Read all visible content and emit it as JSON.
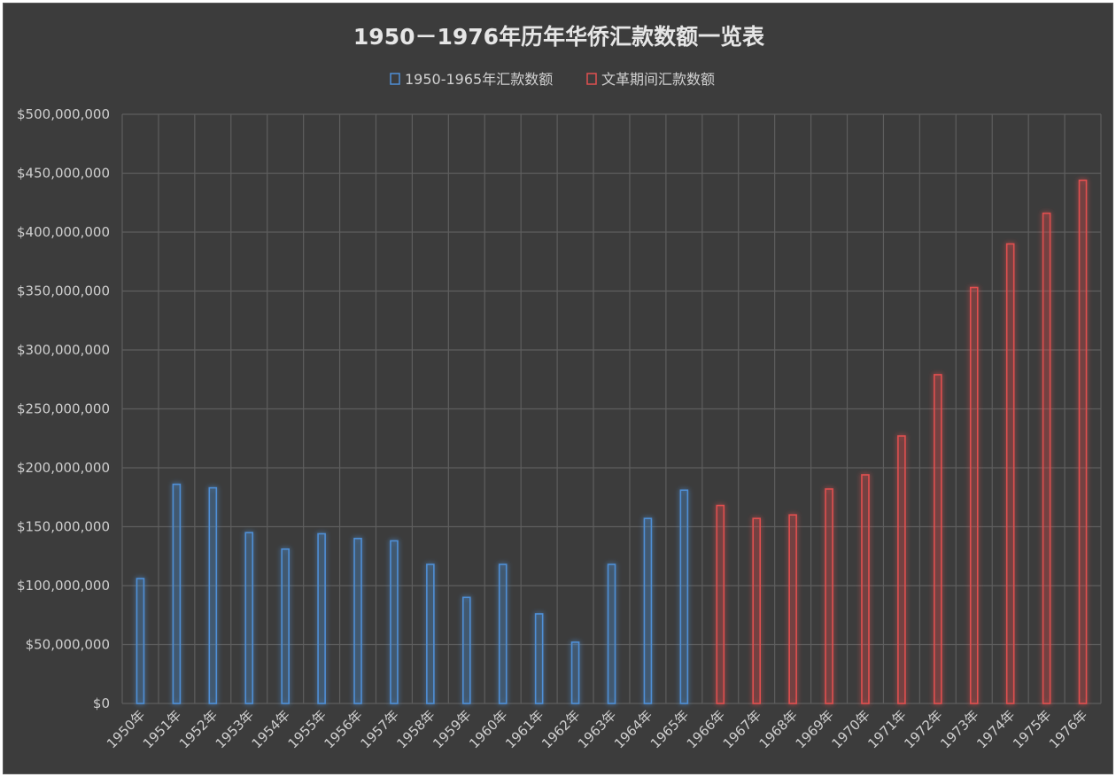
{
  "chart_data": {
    "type": "bar",
    "title": "1950－1976年历年华侨汇款数额一览表",
    "xlabel": "",
    "ylabel": "",
    "ylim": [
      0,
      500000000
    ],
    "yticks": [
      "$0",
      "$50,000,000",
      "$100,000,000",
      "$150,000,000",
      "$200,000,000",
      "$250,000,000",
      "$300,000,000",
      "$350,000,000",
      "$400,000,000",
      "$450,000,000",
      "$500,000,000"
    ],
    "grid": true,
    "legend_position": "top",
    "categories": [
      "1950年",
      "1951年",
      "1952年",
      "1953年",
      "1954年",
      "1955年",
      "1956年",
      "1957年",
      "1958年",
      "1959年",
      "1960年",
      "1961年",
      "1962年",
      "1963年",
      "1964年",
      "1965年",
      "1966年",
      "1967年",
      "1968年",
      "1969年",
      "1970年",
      "1971年",
      "1972年",
      "1973年",
      "1974年",
      "1975年",
      "1976年"
    ],
    "series": [
      {
        "name": "1950-1965年汇款数额",
        "color": "#4f8fd6",
        "values": [
          106000000,
          186000000,
          183000000,
          145000000,
          131000000,
          144000000,
          140000000,
          138000000,
          118000000,
          90000000,
          118000000,
          76000000,
          52000000,
          118000000,
          157000000,
          181000000,
          null,
          null,
          null,
          null,
          null,
          null,
          null,
          null,
          null,
          null,
          null
        ]
      },
      {
        "name": "文革期间汇款数额",
        "color": "#e05050",
        "values": [
          null,
          null,
          null,
          null,
          null,
          null,
          null,
          null,
          null,
          null,
          null,
          null,
          null,
          null,
          null,
          null,
          168000000,
          157000000,
          160000000,
          182000000,
          194000000,
          227000000,
          279000000,
          353000000,
          390000000,
          416000000,
          444000000
        ]
      }
    ]
  }
}
